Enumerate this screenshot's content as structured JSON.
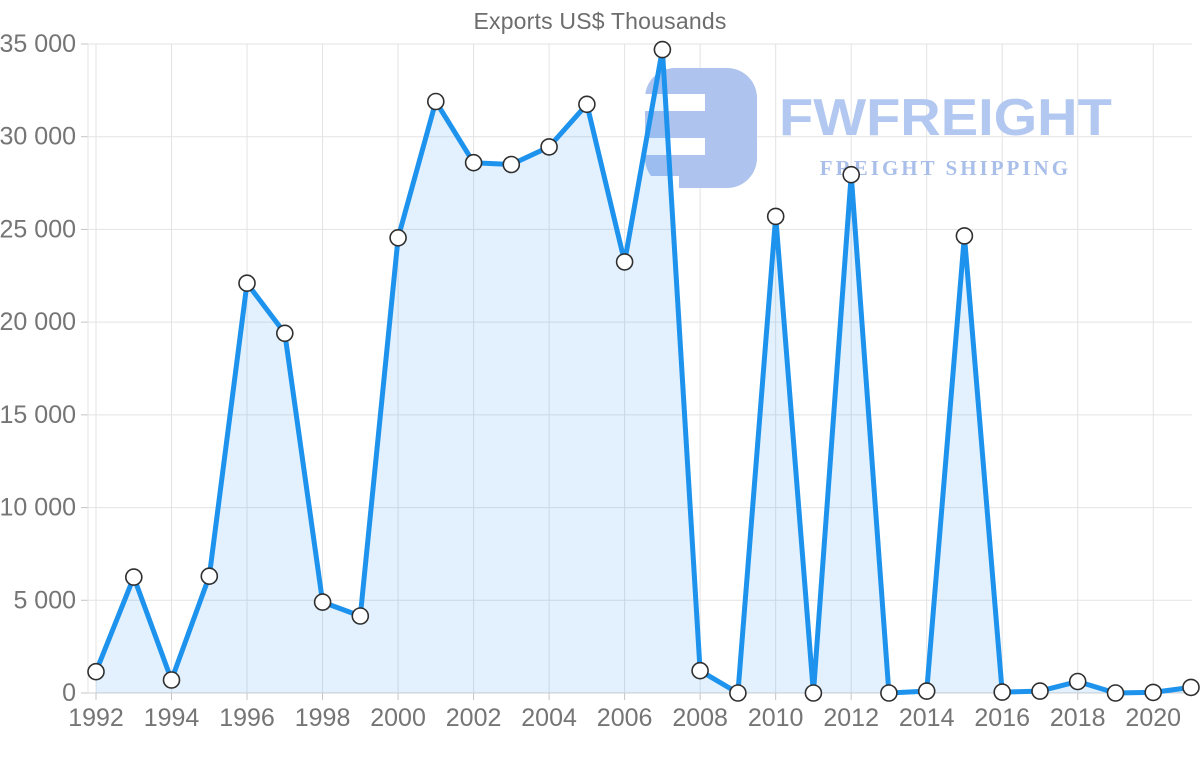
{
  "title": "Exports US$ Thousands",
  "watermark": {
    "brand": "FWFREIGHT",
    "tagline": "FREIGHT SHIPPING",
    "logo_icon": "rounded-square-f-glyph",
    "color": "#b3c8f1"
  },
  "colors": {
    "line": "#1d93ee",
    "area_fill": "rgba(29,147,238,0.13)",
    "marker_fill": "#ffffff",
    "marker_stroke": "#2f2f2f",
    "grid": "#e3e3e3",
    "axis_line": "#d0d0d0",
    "tick": "#c4c4c4",
    "axis_label": "#757575",
    "title": "#6d6d6d"
  },
  "chart_data": {
    "type": "area",
    "title": "Exports US$ Thousands",
    "xlabel": "",
    "ylabel": "",
    "x": [
      1992,
      1993,
      1994,
      1995,
      1996,
      1997,
      1998,
      1999,
      2000,
      2001,
      2002,
      2003,
      2004,
      2005,
      2006,
      2007,
      2008,
      2009,
      2010,
      2011,
      2012,
      2013,
      2014,
      2015,
      2016,
      2017,
      2018,
      2019,
      2020,
      2021
    ],
    "values": [
      1150,
      6250,
      700,
      6300,
      22100,
      19400,
      4900,
      4150,
      24550,
      31900,
      28600,
      28500,
      29450,
      31750,
      23250,
      34700,
      1200,
      0,
      25700,
      0,
      27950,
      0,
      100,
      24650,
      50,
      100,
      620,
      0,
      30,
      300
    ],
    "series_name": "Exports US$ Thousands",
    "ylim": [
      0,
      35000
    ],
    "ytick_step": 5000,
    "ytick_labels": [
      "0",
      "5 000",
      "10 000",
      "15 000",
      "20 000",
      "25 000",
      "30 000",
      "35 000"
    ],
    "xtick_labels": [
      "1992",
      "1994",
      "1996",
      "1998",
      "2000",
      "2002",
      "2004",
      "2006",
      "2008",
      "2010",
      "2012",
      "2014",
      "2016",
      "2018",
      "2020"
    ],
    "grid": true,
    "legend": "none",
    "marker_radius": 8,
    "line_width": 5
  }
}
